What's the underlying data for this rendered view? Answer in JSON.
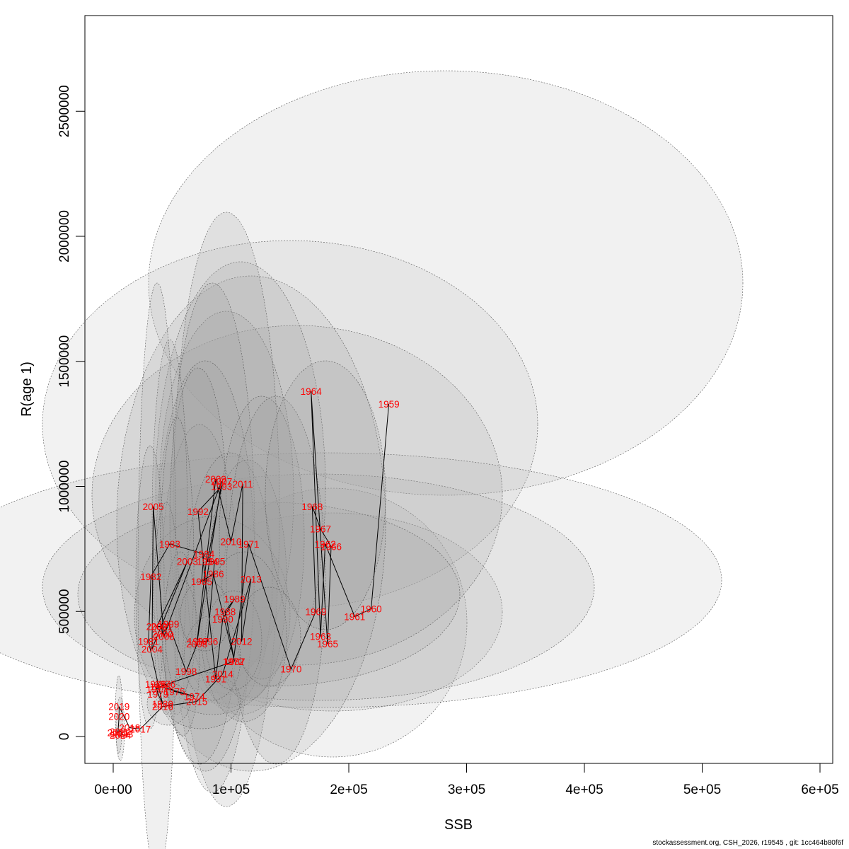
{
  "chart_data": {
    "type": "scatter",
    "title": "",
    "xlabel": "SSB",
    "ylabel": "R(age 1)",
    "xlim": [
      -24000,
      600000
    ],
    "ylim": [
      -110000,
      2870000
    ],
    "x_ticks": [
      0,
      100000,
      200000,
      300000,
      400000,
      500000,
      600000
    ],
    "x_tick_labels": [
      "0e+00",
      "1e+05",
      "2e+05",
      "3e+05",
      "4e+05",
      "5e+05",
      "6e+05"
    ],
    "y_ticks": [
      0,
      500000,
      1000000,
      1500000,
      2000000,
      2500000
    ],
    "y_tick_labels": [
      "0",
      "500000",
      "1000000",
      "1500000",
      "2000000",
      "2500000"
    ],
    "grid": false,
    "legend": "none",
    "colors": {
      "point_label": "#ff0000",
      "trajectory": "#000000",
      "ellipse_fill": "#a0a0a0",
      "ellipse_stroke": "#555555"
    },
    "points": [
      {
        "year": "1959",
        "ssb": 234000,
        "rec": 1330000
      },
      {
        "year": "1960",
        "ssb": 219000,
        "rec": 510000
      },
      {
        "year": "1961",
        "ssb": 205000,
        "rec": 480000
      },
      {
        "year": "1962",
        "ssb": 180000,
        "rec": 770000
      },
      {
        "year": "1963",
        "ssb": 176000,
        "rec": 400000
      },
      {
        "year": "1964",
        "ssb": 168000,
        "rec": 1380000
      },
      {
        "year": "1965",
        "ssb": 182000,
        "rec": 370000
      },
      {
        "year": "1966",
        "ssb": 185000,
        "rec": 760000
      },
      {
        "year": "1967",
        "ssb": 176000,
        "rec": 830000
      },
      {
        "year": "1968",
        "ssb": 169000,
        "rec": 920000
      },
      {
        "year": "1969",
        "ssb": 172000,
        "rec": 500000
      },
      {
        "year": "1970",
        "ssb": 151000,
        "rec": 270000
      },
      {
        "year": "1971",
        "ssb": 115000,
        "rec": 770000
      },
      {
        "year": "1972",
        "ssb": 102000,
        "rec": 300000
      },
      {
        "year": "1973",
        "ssb": 40000,
        "rec": 200000
      },
      {
        "year": "1974",
        "ssb": 69000,
        "rec": 160000
      },
      {
        "year": "1975",
        "ssb": 52000,
        "rec": 180000
      },
      {
        "year": "1976",
        "ssb": 44000,
        "rec": 210000
      },
      {
        "year": "1977",
        "ssb": 37000,
        "rec": 190000
      },
      {
        "year": "1978",
        "ssb": 36000,
        "rec": 210000
      },
      {
        "year": "1979",
        "ssb": 38000,
        "rec": 170000
      },
      {
        "year": "1980",
        "ssb": 42000,
        "rec": 130000
      },
      {
        "year": "1981",
        "ssb": 30000,
        "rec": 380000
      },
      {
        "year": "1982",
        "ssb": 32000,
        "rec": 640000
      },
      {
        "year": "1983",
        "ssb": 48000,
        "rec": 770000
      },
      {
        "year": "1984",
        "ssb": 77000,
        "rec": 730000
      },
      {
        "year": "1985",
        "ssb": 75000,
        "rec": 620000
      },
      {
        "year": "1986",
        "ssb": 85000,
        "rec": 650000
      },
      {
        "year": "1987",
        "ssb": 103000,
        "rec": 300000
      },
      {
        "year": "1988",
        "ssb": 95000,
        "rec": 500000
      },
      {
        "year": "1989",
        "ssb": 103000,
        "rec": 550000
      },
      {
        "year": "1990",
        "ssb": 93000,
        "rec": 470000
      },
      {
        "year": "1991",
        "ssb": 87000,
        "rec": 230000
      },
      {
        "year": "1992",
        "ssb": 72000,
        "rec": 900000
      },
      {
        "year": "1993",
        "ssb": 92000,
        "rec": 1000000
      },
      {
        "year": "1994",
        "ssb": 80000,
        "rec": 700000
      },
      {
        "year": "1995",
        "ssb": 86000,
        "rec": 700000
      },
      {
        "year": "1996",
        "ssb": 80000,
        "rec": 380000
      },
      {
        "year": "1997",
        "ssb": 72000,
        "rec": 380000
      },
      {
        "year": "1998",
        "ssb": 62000,
        "rec": 260000
      },
      {
        "year": "1999",
        "ssb": 47000,
        "rec": 450000
      },
      {
        "year": "2000",
        "ssb": 42000,
        "rec": 410000
      },
      {
        "year": "2001",
        "ssb": 41000,
        "rec": 440000
      },
      {
        "year": "2002",
        "ssb": 37000,
        "rec": 440000
      },
      {
        "year": "2003",
        "ssb": 63000,
        "rec": 700000
      },
      {
        "year": "2004",
        "ssb": 33000,
        "rec": 350000
      },
      {
        "year": "2005",
        "ssb": 34000,
        "rec": 920000
      },
      {
        "year": "2006",
        "ssb": 43000,
        "rec": 400000
      },
      {
        "year": "2007",
        "ssb": 92000,
        "rec": 1020000
      },
      {
        "year": "2008",
        "ssb": 71000,
        "rec": 370000
      },
      {
        "year": "2009",
        "ssb": 87000,
        "rec": 1030000
      },
      {
        "year": "2010",
        "ssb": 100000,
        "rec": 780000
      },
      {
        "year": "2011",
        "ssb": 110000,
        "rec": 1010000
      },
      {
        "year": "2012",
        "ssb": 109000,
        "rec": 380000
      },
      {
        "year": "2013",
        "ssb": 117000,
        "rec": 630000
      },
      {
        "year": "2014",
        "ssb": 93000,
        "rec": 250000
      },
      {
        "year": "2015",
        "ssb": 71000,
        "rec": 140000
      },
      {
        "year": "2016",
        "ssb": 42000,
        "rec": 120000
      },
      {
        "year": "2017",
        "ssb": 23000,
        "rec": 30000
      },
      {
        "year": "2018",
        "ssb": 14000,
        "rec": 35000
      },
      {
        "year": "2019",
        "ssb": 5000,
        "rec": 120000
      },
      {
        "year": "2020",
        "ssb": 5000,
        "rec": 80000
      },
      {
        "year": "2021",
        "ssb": 4000,
        "rec": 15000
      },
      {
        "year": "2022",
        "ssb": 6000,
        "rec": 20000
      },
      {
        "year": "2023",
        "ssb": 8000,
        "rec": 10000
      },
      {
        "year": "2024",
        "ssb": 6000,
        "rec": 5000
      }
    ]
  },
  "footer_text": "stockassessment.org, CSH_2026, r19545 , git: 1cc464b80f6f"
}
